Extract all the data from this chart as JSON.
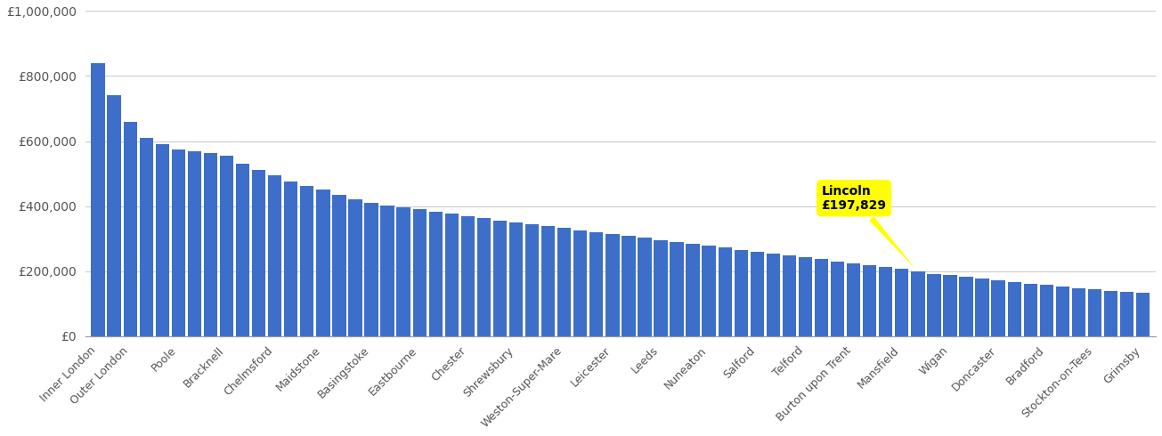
{
  "categories": [
    "Inner London",
    "Outer London",
    "Poole",
    "Bracknell",
    "Chelmsford",
    "Maidstone",
    "Basingstoke",
    "Eastbourne",
    "Chester",
    "Shrewsbury",
    "Weston-Super-Mare",
    "Leicester",
    "Leeds",
    "Nuneaton",
    "Salford",
    "Telford",
    "Burton upon Trent",
    "Mansfield",
    "Wigan",
    "Doncaster",
    "Bradford",
    "Stockton-on-Tees",
    "Grimsby"
  ],
  "label_indices": [
    0,
    2,
    5,
    8,
    11,
    14,
    17,
    20,
    23,
    26,
    29,
    32,
    35,
    38,
    41,
    44,
    47,
    50,
    53,
    56,
    59,
    62,
    65
  ],
  "values": [
    840000,
    740000,
    660000,
    610000,
    590000,
    575000,
    568000,
    562000,
    555000,
    530000,
    510000,
    495000,
    475000,
    462000,
    450000,
    435000,
    420000,
    410000,
    402000,
    397000,
    390000,
    383000,
    376000,
    368000,
    362000,
    356000,
    350000,
    344000,
    338000,
    332000,
    326000,
    320000,
    314000,
    308000,
    302000,
    296000,
    290000,
    284000,
    278000,
    272000,
    266000,
    260000,
    254000,
    248000,
    242000,
    236000,
    230000,
    224000,
    218000,
    212000,
    206000,
    197829,
    192000,
    187000,
    182000,
    177000,
    172000,
    167000,
    162000,
    157000,
    152000,
    148000,
    144000,
    140000,
    136000,
    132000
  ],
  "lincoln_idx": 51,
  "bar_color": "#3d6ec9",
  "annotation_bg": "#ffff00",
  "ylim": [
    0,
    1000000
  ],
  "yticks": [
    0,
    200000,
    400000,
    600000,
    800000,
    1000000
  ]
}
